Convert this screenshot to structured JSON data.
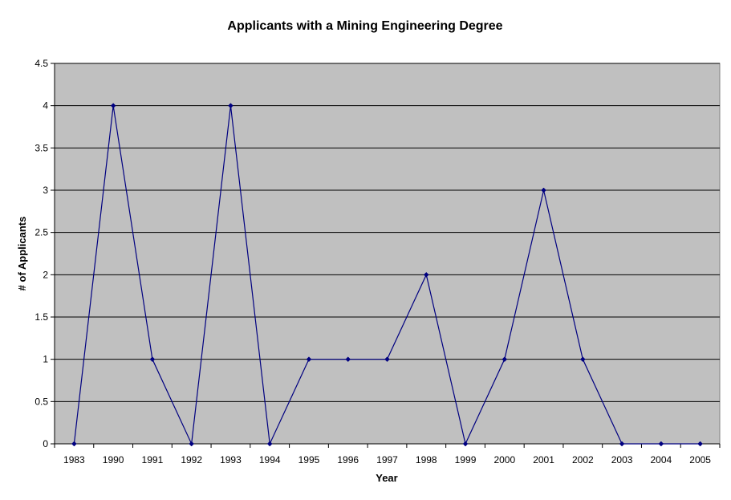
{
  "chart_data": {
    "type": "line",
    "title": "Applicants with a Mining Engineering Degree",
    "xlabel": "Year",
    "ylabel": "# of Applicants",
    "categories": [
      "1983",
      "1990",
      "1991",
      "1992",
      "1993",
      "1994",
      "1995",
      "1996",
      "1997",
      "1998",
      "1999",
      "2000",
      "2001",
      "2002",
      "2003",
      "2004",
      "2005"
    ],
    "values": [
      0,
      4,
      1,
      0,
      4,
      0,
      1,
      1,
      1,
      2,
      0,
      1,
      3,
      1,
      0,
      0,
      0
    ],
    "ylim": [
      0,
      4.5
    ],
    "yticks": [
      "0",
      "0.5",
      "1",
      "1.5",
      "2",
      "2.5",
      "3",
      "3.5",
      "4",
      "4.5"
    ],
    "grid": true,
    "legend": "none",
    "colors": {
      "plot_background": "#c0c0c0",
      "line": "#000080",
      "gridline": "#000000"
    }
  }
}
